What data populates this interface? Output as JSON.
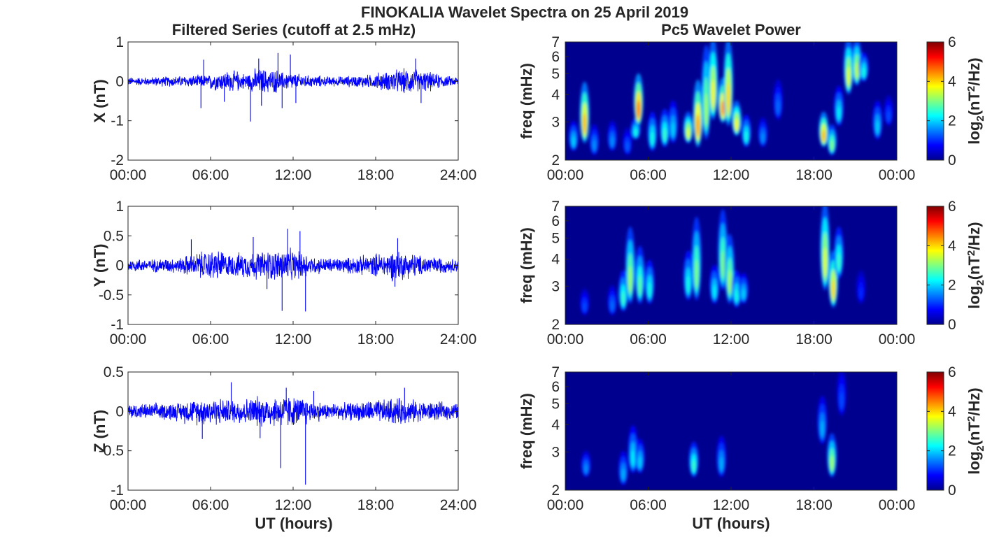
{
  "figure": {
    "title": "FINOKALIA Wavelet Spectra on 25 April 2019",
    "left_title": "Filtered Series (cutoff at 2.5 mHz)",
    "right_title": "Pc5 Wavelet Power",
    "xlabel": "UT (hours)",
    "colors": {
      "series": "#0000ff",
      "spectrum_background": "#00008f",
      "axes": "#262626"
    }
  },
  "chart_data": [
    {
      "type": "line",
      "component": "X",
      "ylabel": "X (nT)",
      "xlim": [
        0,
        24
      ],
      "ylim": [
        -2,
        1
      ],
      "xticks": [
        "00:00",
        "06:00",
        "12:00",
        "18:00",
        "24:00"
      ],
      "yticks": [
        "-2",
        "-1",
        "0",
        "1"
      ],
      "envelope": [
        0.1,
        0.1,
        0.12,
        0.13,
        0.14,
        0.15,
        0.22,
        0.25,
        0.2,
        0.3,
        0.28,
        0.22,
        0.18,
        0.14,
        0.12,
        0.12,
        0.14,
        0.16,
        0.22,
        0.28,
        0.3,
        0.24,
        0.18,
        0.12
      ],
      "spikes": [
        {
          "x": 5.3,
          "y": -0.68
        },
        {
          "x": 8.9,
          "y": -1.02
        },
        {
          "x": 9.7,
          "y": -0.62
        },
        {
          "x": 11.2,
          "y": -0.68
        },
        {
          "x": 12.2,
          "y": -0.55
        },
        {
          "x": 11.8,
          "y": 0.68
        },
        {
          "x": 10.9,
          "y": 0.72
        },
        {
          "x": 5.5,
          "y": 0.55
        },
        {
          "x": 9.5,
          "y": 0.58
        },
        {
          "x": 21.3,
          "y": -0.55
        },
        {
          "x": 20.9,
          "y": 0.58
        },
        {
          "x": 7.0,
          "y": -0.52
        }
      ]
    },
    {
      "type": "line",
      "component": "Y",
      "ylabel": "Y (nT)",
      "xlim": [
        0,
        24
      ],
      "ylim": [
        -1,
        1
      ],
      "xticks": [
        "00:00",
        "06:00",
        "12:00",
        "18:00",
        "24:00"
      ],
      "yticks": [
        "-1",
        "-0.5",
        "0",
        "0.5",
        "1"
      ],
      "envelope": [
        0.1,
        0.1,
        0.11,
        0.12,
        0.16,
        0.22,
        0.24,
        0.18,
        0.2,
        0.22,
        0.24,
        0.26,
        0.22,
        0.14,
        0.12,
        0.12,
        0.14,
        0.16,
        0.2,
        0.24,
        0.2,
        0.16,
        0.13,
        0.11
      ],
      "spikes": [
        {
          "x": 11.2,
          "y": -0.77
        },
        {
          "x": 12.9,
          "y": -0.78
        },
        {
          "x": 12.5,
          "y": 0.58
        },
        {
          "x": 11.6,
          "y": 0.62
        },
        {
          "x": 9.1,
          "y": 0.48
        },
        {
          "x": 19.6,
          "y": 0.46
        },
        {
          "x": 4.6,
          "y": 0.44
        },
        {
          "x": 19.4,
          "y": -0.36
        },
        {
          "x": 10.1,
          "y": -0.4
        }
      ]
    },
    {
      "type": "line",
      "component": "Z",
      "ylabel": "Z (nT)",
      "xlim": [
        0,
        24
      ],
      "ylim": [
        -1,
        0.5
      ],
      "xticks": [
        "00:00",
        "06:00",
        "12:00",
        "18:00",
        "24:00"
      ],
      "yticks": [
        "-1",
        "-0.5",
        "0",
        "0.5"
      ],
      "envelope": [
        0.09,
        0.09,
        0.1,
        0.11,
        0.14,
        0.16,
        0.16,
        0.14,
        0.16,
        0.18,
        0.18,
        0.2,
        0.17,
        0.12,
        0.1,
        0.1,
        0.11,
        0.13,
        0.14,
        0.16,
        0.14,
        0.12,
        0.11,
        0.1
      ],
      "spikes": [
        {
          "x": 11.1,
          "y": -0.72
        },
        {
          "x": 12.9,
          "y": -0.93
        },
        {
          "x": 7.5,
          "y": 0.37
        },
        {
          "x": 11.5,
          "y": 0.3
        },
        {
          "x": 5.4,
          "y": -0.35
        },
        {
          "x": 9.6,
          "y": -0.34
        },
        {
          "x": 20.1,
          "y": 0.3
        },
        {
          "x": 13.5,
          "y": 0.26
        }
      ]
    },
    {
      "type": "heatmap",
      "component": "X",
      "ylabel": "freq (mHz)",
      "xlim": [
        0,
        24
      ],
      "ylim": [
        2,
        7
      ],
      "yscale": "log",
      "xticks": [
        "00:00",
        "06:00",
        "12:00",
        "18:00",
        "00:00"
      ],
      "yticks": [
        "2",
        "3",
        "4",
        "5",
        "6",
        "7"
      ],
      "colorbar": {
        "label": "log2(nT2/Hz)",
        "range": [
          0,
          6
        ],
        "ticks": [
          "0",
          "2",
          "4",
          "6"
        ]
      },
      "blobs": [
        {
          "t": 0.6,
          "f": 2.3,
          "fh": 2.9,
          "v": 2.0
        },
        {
          "t": 1.4,
          "f": 2.5,
          "fh": 4.4,
          "v": 4.2
        },
        {
          "t": 2.1,
          "f": 2.2,
          "fh": 2.8,
          "v": 1.6
        },
        {
          "t": 3.4,
          "f": 2.3,
          "fh": 2.9,
          "v": 1.6
        },
        {
          "t": 4.5,
          "f": 2.2,
          "fh": 2.7,
          "v": 1.3
        },
        {
          "t": 5.1,
          "f": 2.6,
          "fh": 3.0,
          "v": 2.4
        },
        {
          "t": 5.3,
          "f": 3.0,
          "fh": 4.8,
          "v": 4.6
        },
        {
          "t": 6.3,
          "f": 2.3,
          "fh": 3.2,
          "v": 2.4
        },
        {
          "t": 7.2,
          "f": 2.4,
          "fh": 3.3,
          "v": 2.6
        },
        {
          "t": 7.8,
          "f": 2.5,
          "fh": 3.6,
          "v": 2.0
        },
        {
          "t": 8.9,
          "f": 2.5,
          "fh": 3.2,
          "v": 3.6
        },
        {
          "t": 9.6,
          "f": 2.4,
          "fh": 4.5,
          "v": 4.4
        },
        {
          "t": 10.2,
          "f": 2.6,
          "fh": 6.5,
          "v": 3.2
        },
        {
          "t": 10.7,
          "f": 3.2,
          "fh": 7.0,
          "v": 3.8
        },
        {
          "t": 11.4,
          "f": 3.1,
          "fh": 4.6,
          "v": 4.4
        },
        {
          "t": 11.8,
          "f": 3.0,
          "fh": 7.0,
          "v": 4.0
        },
        {
          "t": 12.4,
          "f": 2.7,
          "fh": 3.6,
          "v": 3.8
        },
        {
          "t": 13.1,
          "f": 2.4,
          "fh": 3.1,
          "v": 2.4
        },
        {
          "t": 14.3,
          "f": 2.4,
          "fh": 3.0,
          "v": 1.6
        },
        {
          "t": 15.4,
          "f": 3.2,
          "fh": 4.5,
          "v": 1.4
        },
        {
          "t": 18.7,
          "f": 2.4,
          "fh": 3.2,
          "v": 4.2
        },
        {
          "t": 19.3,
          "f": 2.2,
          "fh": 2.8,
          "v": 3.0
        },
        {
          "t": 19.8,
          "f": 3.0,
          "fh": 4.2,
          "v": 2.2
        },
        {
          "t": 20.5,
          "f": 4.2,
          "fh": 7.0,
          "v": 3.6
        },
        {
          "t": 21.1,
          "f": 4.6,
          "fh": 7.0,
          "v": 3.4
        },
        {
          "t": 21.6,
          "f": 4.8,
          "fh": 6.0,
          "v": 2.4
        },
        {
          "t": 22.6,
          "f": 2.6,
          "fh": 3.6,
          "v": 2.0
        },
        {
          "t": 23.4,
          "f": 3.0,
          "fh": 3.8,
          "v": 1.2
        }
      ]
    },
    {
      "type": "heatmap",
      "component": "Y",
      "ylabel": "freq (mHz)",
      "xlim": [
        0,
        24
      ],
      "ylim": [
        2,
        7
      ],
      "yscale": "log",
      "xticks": [
        "00:00",
        "06:00",
        "12:00",
        "18:00",
        "00:00"
      ],
      "yticks": [
        "2",
        "3",
        "4",
        "5",
        "6",
        "7"
      ],
      "colorbar": {
        "label": "log2(nT2/Hz)",
        "range": [
          0,
          6
        ],
        "ticks": [
          "0",
          "2",
          "4",
          "6"
        ]
      },
      "blobs": [
        {
          "t": 1.4,
          "f": 2.3,
          "fh": 2.8,
          "v": 1.2
        },
        {
          "t": 3.4,
          "f": 2.3,
          "fh": 2.9,
          "v": 1.4
        },
        {
          "t": 4.2,
          "f": 2.4,
          "fh": 3.4,
          "v": 2.6
        },
        {
          "t": 4.7,
          "f": 2.6,
          "fh": 5.4,
          "v": 3.2
        },
        {
          "t": 5.4,
          "f": 2.6,
          "fh": 4.4,
          "v": 2.8
        },
        {
          "t": 6.1,
          "f": 2.6,
          "fh": 3.8,
          "v": 2.4
        },
        {
          "t": 8.9,
          "f": 2.7,
          "fh": 4.2,
          "v": 2.4
        },
        {
          "t": 9.5,
          "f": 2.7,
          "fh": 6.0,
          "v": 3.0
        },
        {
          "t": 10.8,
          "f": 2.6,
          "fh": 3.6,
          "v": 2.2
        },
        {
          "t": 11.4,
          "f": 3.0,
          "fh": 6.5,
          "v": 3.0
        },
        {
          "t": 11.9,
          "f": 2.6,
          "fh": 5.0,
          "v": 3.2
        },
        {
          "t": 12.4,
          "f": 2.5,
          "fh": 3.4,
          "v": 2.4
        },
        {
          "t": 12.9,
          "f": 2.6,
          "fh": 3.3,
          "v": 2.0
        },
        {
          "t": 18.8,
          "f": 3.0,
          "fh": 7.0,
          "v": 3.6
        },
        {
          "t": 19.4,
          "f": 2.5,
          "fh": 4.2,
          "v": 4.0
        },
        {
          "t": 19.8,
          "f": 3.4,
          "fh": 5.4,
          "v": 2.6
        },
        {
          "t": 21.4,
          "f": 2.6,
          "fh": 3.4,
          "v": 1.0
        }
      ]
    },
    {
      "type": "heatmap",
      "component": "Z",
      "ylabel": "freq (mHz)",
      "xlim": [
        0,
        24
      ],
      "ylim": [
        2,
        7
      ],
      "yscale": "log",
      "xticks": [
        "00:00",
        "06:00",
        "12:00",
        "18:00",
        "00:00"
      ],
      "yticks": [
        "2",
        "3",
        "4",
        "5",
        "6",
        "7"
      ],
      "colorbar": {
        "label": "log2(nT2/Hz)",
        "range": [
          0,
          6
        ],
        "ticks": [
          "0",
          "2",
          "4",
          "6"
        ]
      },
      "blobs": [
        {
          "t": 1.5,
          "f": 2.4,
          "fh": 2.9,
          "v": 1.6
        },
        {
          "t": 4.2,
          "f": 2.2,
          "fh": 2.9,
          "v": 1.8
        },
        {
          "t": 4.9,
          "f": 2.5,
          "fh": 3.8,
          "v": 2.2
        },
        {
          "t": 5.4,
          "f": 2.5,
          "fh": 3.3,
          "v": 2.0
        },
        {
          "t": 9.3,
          "f": 2.4,
          "fh": 3.2,
          "v": 2.6
        },
        {
          "t": 11.3,
          "f": 2.4,
          "fh": 3.4,
          "v": 1.8
        },
        {
          "t": 18.6,
          "f": 3.4,
          "fh": 5.2,
          "v": 1.8
        },
        {
          "t": 19.3,
          "f": 2.4,
          "fh": 3.5,
          "v": 3.2
        },
        {
          "t": 20.0,
          "f": 4.6,
          "fh": 7.0,
          "v": 1.2
        }
      ]
    }
  ]
}
